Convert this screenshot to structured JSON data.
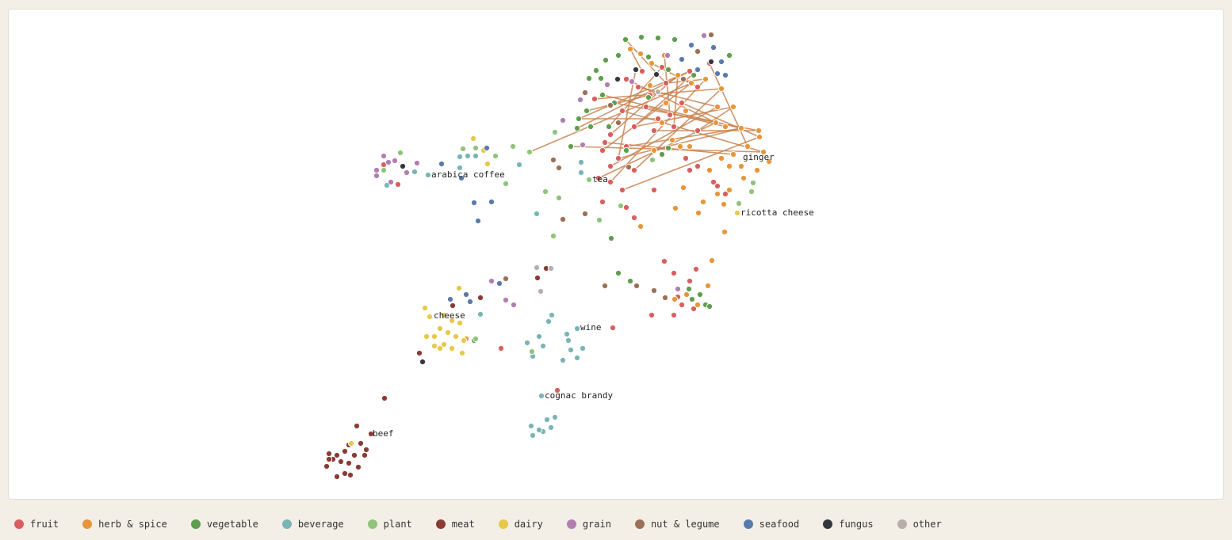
{
  "chart_data": {
    "type": "scatter",
    "xlim": [
      10,
      1544
    ],
    "ylim": [
      631,
      11
    ],
    "series": [
      {
        "name": "fruit",
        "color": "#d95f5f",
        "x": [
          790,
          805,
          820,
          840,
          860,
          830,
          800,
          770,
          760,
          780,
          750,
          815,
          845,
          870,
          880,
          895,
          835,
          810,
          785,
          825,
          770,
          755,
          770,
          785,
          800,
          825,
          760,
          790,
          800,
          865,
          880,
          870,
          900,
          915,
          905,
          838,
          850,
          870,
          855,
          860,
          875,
          850,
          822,
          878,
          773,
          632,
          703,
          502,
          484,
          880,
          850,
          763,
          790
        ],
        "y": [
          100,
          110,
          120,
          105,
          130,
          150,
          160,
          170,
          190,
          200,
          125,
          135,
          145,
          90,
          110,
          80,
          85,
          90,
          140,
          165,
          210,
          225,
          230,
          240,
          215,
          240,
          255,
          262,
          275,
          200,
          210,
          215,
          230,
          245,
          235,
          330,
          345,
          355,
          375,
          385,
          390,
          398,
          398,
          340,
          414,
          440,
          493,
          233,
          208,
          165,
          160,
          180,
          185
        ]
      },
      {
        "name": "herb & spice",
        "color": "#e8963a",
        "x": [
          795,
          808,
          822,
          838,
          855,
          872,
          890,
          910,
          905,
          925,
          903,
          915,
          935,
          957,
          958,
          943,
          963,
          925,
          910,
          895,
          920,
          935,
          955,
          938,
          920,
          905,
          887,
          913,
          862,
          852,
          881,
          914,
          898,
          893,
          851,
          880,
          866,
          808,
          848,
          870,
          858,
          835,
          865,
          840,
          820,
          588,
          970,
          825
        ],
        "y": [
          62,
          68,
          80,
          70,
          95,
          105,
          100,
          112,
          135,
          135,
          155,
          160,
          162,
          165,
          173,
          185,
          192,
          195,
          200,
          215,
          210,
          210,
          215,
          225,
          240,
          245,
          255,
          258,
          237,
          263,
          269,
          293,
          329,
          361,
          378,
          385,
          372,
          286,
          177,
          185,
          185,
          155,
          140,
          130,
          108,
          428,
          204,
          190
        ]
      },
      {
        "name": "vegetable",
        "color": "#5f9e4f",
        "x": [
          789,
          809,
          830,
          851,
          818,
          780,
          764,
          752,
          743,
          758,
          843,
          760,
          775,
          740,
          730,
          745,
          728,
          768,
          720,
          790,
          835,
          843,
          780,
          795,
          771,
          869,
          883,
          890,
          873,
          895,
          598,
          818,
          875,
          920
        ],
        "y": [
          50,
          47,
          48,
          50,
          72,
          70,
          76,
          89,
          99,
          99,
          88,
          120,
          130,
          140,
          150,
          160,
          162,
          160,
          185,
          190,
          195,
          187,
          345,
          355,
          301,
          365,
          372,
          385,
          378,
          387,
          430,
          123,
          95,
          70
        ]
      },
      {
        "name": "beverage",
        "color": "#7ab5b5",
        "x": [
          540,
          523,
          488,
          580,
          590,
          600,
          580,
          655,
          733,
          733,
          677,
          696,
          692,
          680,
          685,
          665,
          672,
          715,
          717,
          728,
          735,
          720,
          710,
          728,
          683,
          690,
          695,
          685,
          670,
          680,
          700,
          672,
          606
        ],
        "y": [
          221,
          217,
          234,
          198,
          197,
          197,
          212,
          208,
          205,
          218,
          270,
          398,
          406,
          425,
          437,
          433,
          450,
          422,
          430,
          415,
          440,
          442,
          455,
          452,
          500,
          530,
          540,
          545,
          538,
          543,
          527,
          550,
          397
        ]
      },
      {
        "name": "plant",
        "color": "#8fc47a",
        "x": [
          584,
          600,
          625,
          647,
          668,
          638,
          688,
          705,
          698,
          743,
          756,
          783,
          823,
          932,
          948,
          950,
          505,
          484,
          600,
          671,
          700
        ],
        "y": [
          188,
          187,
          197,
          185,
          192,
          232,
          242,
          250,
          298,
          227,
          278,
          260,
          202,
          257,
          242,
          231,
          193,
          215,
          428,
          444,
          167
        ]
      },
      {
        "name": "meat",
        "color": "#8b3a35",
        "x": [
          485,
          468,
          450,
          455,
          440,
          462,
          435,
          425,
          415,
          420,
          430,
          440,
          452,
          412,
          425,
          435,
          442,
          415,
          460,
          447,
          529,
          571,
          606,
          689,
          678
        ],
        "y": [
          503,
          548,
          538,
          560,
          562,
          568,
          570,
          575,
          573,
          580,
          583,
          585,
          590,
          589,
          602,
          598,
          600,
          580,
          575,
          575,
          446,
          386,
          376,
          339,
          351
        ]
      },
      {
        "name": "dairy",
        "color": "#e8c84a",
        "x": [
          597,
          610,
          615,
          536,
          542,
          560,
          570,
          580,
          555,
          565,
          548,
          575,
          585,
          560,
          570,
          555,
          548,
          538,
          583,
          579,
          930,
          443
        ],
        "y": [
          175,
          190,
          207,
          389,
          400,
          398,
          405,
          408,
          415,
          420,
          425,
          425,
          430,
          435,
          440,
          440,
          437,
          425,
          446,
          364,
          269,
          560
        ]
      },
      {
        "name": "grain",
        "color": "#b07fb0",
        "x": [
          484,
          475,
          475,
          490,
          498,
          513,
          526,
          493,
          732,
          710,
          766,
          797,
          842,
          888,
          620,
          638,
          648,
          735,
          855
        ],
        "y": [
          197,
          215,
          222,
          205,
          203,
          218,
          206,
          230,
          126,
          152,
          107,
          103,
          70,
          45,
          355,
          379,
          385,
          183,
          365
        ]
      },
      {
        "name": "nut & legume",
        "color": "#9a7058",
        "x": [
          698,
          705,
          710,
          738,
          738,
          763,
          803,
          825,
          839,
          638,
          770,
          780,
          897,
          862,
          880,
          793
        ],
        "y": [
          202,
          212,
          277,
          270,
          117,
          361,
          361,
          367,
          376,
          352,
          133,
          155,
          44,
          100,
          65,
          211
        ]
      },
      {
        "name": "seafood",
        "color": "#5a7aab",
        "x": [
          557,
          582,
          598,
          603,
          620,
          614,
          900,
          910,
          905,
          880,
          860,
          872,
          568,
          588,
          630,
          593,
          915
        ],
        "y": [
          207,
          225,
          256,
          279,
          255,
          187,
          60,
          78,
          93,
          88,
          75,
          57,
          378,
          372,
          358,
          381,
          95
        ]
      },
      {
        "name": "fungus",
        "color": "#33383d",
        "x": [
          508,
          533,
          779,
          802,
          828,
          897
        ],
        "y": [
          210,
          457,
          100,
          88,
          94,
          78
        ]
      },
      {
        "name": "other",
        "color": "#b8aeaa",
        "x": [
          677,
          695,
          682,
          830
        ],
        "y": [
          338,
          339,
          368,
          116
        ]
      }
    ],
    "links": [
      [
        0,
        0,
        1,
        10
      ],
      [
        0,
        1,
        1,
        8
      ],
      [
        0,
        2,
        2,
        13
      ],
      [
        0,
        3,
        1,
        6
      ],
      [
        0,
        4,
        1,
        14
      ],
      [
        0,
        5,
        2,
        14
      ],
      [
        0,
        6,
        1,
        9
      ],
      [
        0,
        7,
        1,
        4
      ],
      [
        0,
        8,
        1,
        5
      ],
      [
        0,
        9,
        1,
        12
      ],
      [
        0,
        10,
        1,
        7
      ],
      [
        0,
        11,
        1,
        11
      ],
      [
        0,
        12,
        1,
        3
      ],
      [
        0,
        13,
        2,
        16
      ],
      [
        0,
        14,
        1,
        2
      ],
      [
        0,
        15,
        1,
        15
      ],
      [
        0,
        16,
        2,
        17
      ],
      [
        0,
        17,
        1,
        0
      ],
      [
        0,
        18,
        1,
        16
      ],
      [
        0,
        19,
        1,
        13
      ],
      [
        0,
        20,
        1,
        8
      ],
      [
        0,
        21,
        1,
        10
      ],
      [
        0,
        22,
        1,
        6
      ],
      [
        0,
        23,
        1,
        14
      ],
      [
        0,
        24,
        1,
        7
      ],
      [
        0,
        49,
        1,
        9
      ],
      [
        0,
        50,
        1,
        4
      ],
      [
        0,
        51,
        1,
        17
      ],
      [
        0,
        52,
        1,
        12
      ],
      [
        2,
        0,
        0,
        3
      ],
      [
        2,
        11,
        1,
        12
      ],
      [
        2,
        12,
        1,
        13
      ],
      [
        2,
        14,
        0,
        13
      ],
      [
        2,
        18,
        1,
        16
      ],
      [
        9,
        9,
        0,
        6
      ],
      [
        10,
        3,
        0,
        9
      ],
      [
        4,
        4,
        1,
        5
      ]
    ],
    "link_color": "#c8824f",
    "annotations": [
      {
        "text": "arabica coffee",
        "x": 540,
        "y": 221
      },
      {
        "text": "tea",
        "x": 743,
        "y": 227
      },
      {
        "text": "ginger",
        "x": 933,
        "y": 199
      },
      {
        "text": "ricotta cheese",
        "x": 930,
        "y": 269
      },
      {
        "text": "cheese",
        "x": 543,
        "y": 399
      },
      {
        "text": "wine",
        "x": 728,
        "y": 414
      },
      {
        "text": "cognac brandy",
        "x": 683,
        "y": 500
      },
      {
        "text": "beef",
        "x": 466,
        "y": 548
      }
    ]
  }
}
